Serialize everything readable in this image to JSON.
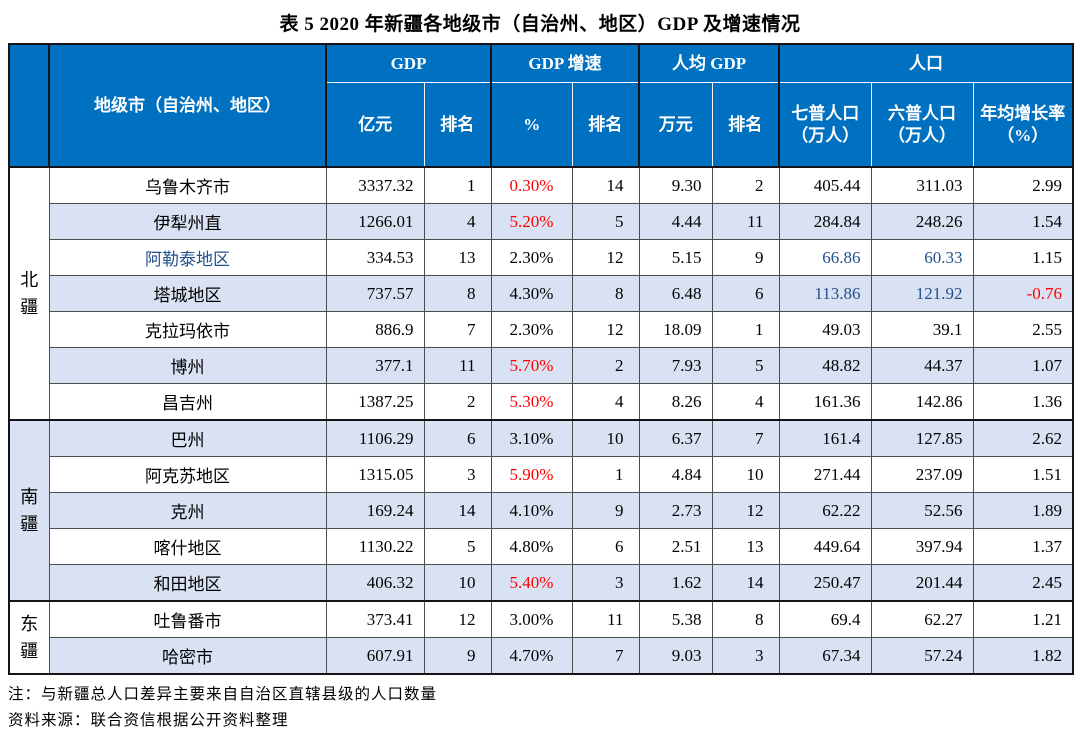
{
  "page": {
    "title": "表 5 2020 年新疆各地级市（自治州、地区）GDP 及增速情况",
    "notes": [
      "注：与新疆总人口差异主要来自自治区直辖县级的人口数量",
      "资料来源：联合资信根据公开资料整理"
    ]
  },
  "colors": {
    "header_bg": "#0070C0",
    "header_text": "#FFFFFF",
    "row_alt_bg": "#D9E2F3",
    "red": "#FF0000",
    "blue": "#24508F"
  },
  "table": {
    "header": {
      "city": "地级市（自治州、地区）",
      "groups": [
        {
          "label": "GDP",
          "subs": [
            "亿元",
            "排名"
          ]
        },
        {
          "label": "GDP 增速",
          "subs": [
            "%",
            "排名"
          ]
        },
        {
          "label": "人均 GDP",
          "subs": [
            "万元",
            "排名"
          ]
        },
        {
          "label": "人口",
          "subs": [
            "七普人口（万人）",
            "六普人口（万人）",
            "年均增长率（%）"
          ]
        }
      ]
    },
    "regions": [
      {
        "label": "北疆",
        "shaded": false,
        "rows": [
          {
            "name": "乌鲁木齐市",
            "name_blue": false,
            "gdp": "3337.32",
            "gdp_rank": "1",
            "growth": "0.30%",
            "growth_red": true,
            "growth_rank": "14",
            "pc_gdp": "9.30",
            "pc_rank": "2",
            "pop7": "405.44",
            "pop6": "311.03",
            "pop_blue": false,
            "avg_growth": "2.99",
            "avg_red": false
          },
          {
            "name": "伊犁州直",
            "name_blue": false,
            "gdp": "1266.01",
            "gdp_rank": "4",
            "growth": "5.20%",
            "growth_red": true,
            "growth_rank": "5",
            "pc_gdp": "4.44",
            "pc_rank": "11",
            "pop7": "284.84",
            "pop6": "248.26",
            "pop_blue": false,
            "avg_growth": "1.54",
            "avg_red": false
          },
          {
            "name": "阿勒泰地区",
            "name_blue": true,
            "gdp": "334.53",
            "gdp_rank": "13",
            "growth": "2.30%",
            "growth_red": false,
            "growth_rank": "12",
            "pc_gdp": "5.15",
            "pc_rank": "9",
            "pop7": "66.86",
            "pop6": "60.33",
            "pop_blue": true,
            "avg_growth": "1.15",
            "avg_red": false
          },
          {
            "name": "塔城地区",
            "name_blue": false,
            "gdp": "737.57",
            "gdp_rank": "8",
            "growth": "4.30%",
            "growth_red": false,
            "growth_rank": "8",
            "pc_gdp": "6.48",
            "pc_rank": "6",
            "pop7": "113.86",
            "pop6": "121.92",
            "pop_blue": true,
            "avg_growth": "-0.76",
            "avg_red": true
          },
          {
            "name": "克拉玛依市",
            "name_blue": false,
            "gdp": "886.9",
            "gdp_rank": "7",
            "growth": "2.30%",
            "growth_red": false,
            "growth_rank": "12",
            "pc_gdp": "18.09",
            "pc_rank": "1",
            "pop7": "49.03",
            "pop6": "39.1",
            "pop_blue": false,
            "avg_growth": "2.55",
            "avg_red": false
          },
          {
            "name": "博州",
            "name_blue": false,
            "gdp": "377.1",
            "gdp_rank": "11",
            "growth": "5.70%",
            "growth_red": true,
            "growth_rank": "2",
            "pc_gdp": "7.93",
            "pc_rank": "5",
            "pop7": "48.82",
            "pop6": "44.37",
            "pop_blue": false,
            "avg_growth": "1.07",
            "avg_red": false
          },
          {
            "name": "昌吉州",
            "name_blue": false,
            "gdp": "1387.25",
            "gdp_rank": "2",
            "growth": "5.30%",
            "growth_red": true,
            "growth_rank": "4",
            "pc_gdp": "8.26",
            "pc_rank": "4",
            "pop7": "161.36",
            "pop6": "142.86",
            "pop_blue": false,
            "avg_growth": "1.36",
            "avg_red": false
          }
        ]
      },
      {
        "label": "南疆",
        "shaded": true,
        "rows": [
          {
            "name": "巴州",
            "name_blue": false,
            "gdp": "1106.29",
            "gdp_rank": "6",
            "growth": "3.10%",
            "growth_red": false,
            "growth_rank": "10",
            "pc_gdp": "6.37",
            "pc_rank": "7",
            "pop7": "161.4",
            "pop6": "127.85",
            "pop_blue": false,
            "avg_growth": "2.62",
            "avg_red": false
          },
          {
            "name": "阿克苏地区",
            "name_blue": false,
            "gdp": "1315.05",
            "gdp_rank": "3",
            "growth": "5.90%",
            "growth_red": true,
            "growth_rank": "1",
            "pc_gdp": "4.84",
            "pc_rank": "10",
            "pop7": "271.44",
            "pop6": "237.09",
            "pop_blue": false,
            "avg_growth": "1.51",
            "avg_red": false
          },
          {
            "name": "克州",
            "name_blue": false,
            "gdp": "169.24",
            "gdp_rank": "14",
            "growth": "4.10%",
            "growth_red": false,
            "growth_rank": "9",
            "pc_gdp": "2.73",
            "pc_rank": "12",
            "pop7": "62.22",
            "pop6": "52.56",
            "pop_blue": false,
            "avg_growth": "1.89",
            "avg_red": false
          },
          {
            "name": "喀什地区",
            "name_blue": false,
            "gdp": "1130.22",
            "gdp_rank": "5",
            "growth": "4.80%",
            "growth_red": false,
            "growth_rank": "6",
            "pc_gdp": "2.51",
            "pc_rank": "13",
            "pop7": "449.64",
            "pop6": "397.94",
            "pop_blue": false,
            "avg_growth": "1.37",
            "avg_red": false
          },
          {
            "name": "和田地区",
            "name_blue": false,
            "gdp": "406.32",
            "gdp_rank": "10",
            "growth": "5.40%",
            "growth_red": true,
            "growth_rank": "3",
            "pc_gdp": "1.62",
            "pc_rank": "14",
            "pop7": "250.47",
            "pop6": "201.44",
            "pop_blue": false,
            "avg_growth": "2.45",
            "avg_red": false
          }
        ]
      },
      {
        "label": "东疆",
        "shaded": false,
        "rows": [
          {
            "name": "吐鲁番市",
            "name_blue": false,
            "gdp": "373.41",
            "gdp_rank": "12",
            "growth": "3.00%",
            "growth_red": false,
            "growth_rank": "11",
            "pc_gdp": "5.38",
            "pc_rank": "8",
            "pop7": "69.4",
            "pop6": "62.27",
            "pop_blue": false,
            "avg_growth": "1.21",
            "avg_red": false
          },
          {
            "name": "哈密市",
            "name_blue": false,
            "gdp": "607.91",
            "gdp_rank": "9",
            "growth": "4.70%",
            "growth_red": false,
            "growth_rank": "7",
            "pc_gdp": "9.03",
            "pc_rank": "3",
            "pop7": "67.34",
            "pop6": "57.24",
            "pop_blue": false,
            "avg_growth": "1.82",
            "avg_red": false
          }
        ]
      }
    ]
  }
}
